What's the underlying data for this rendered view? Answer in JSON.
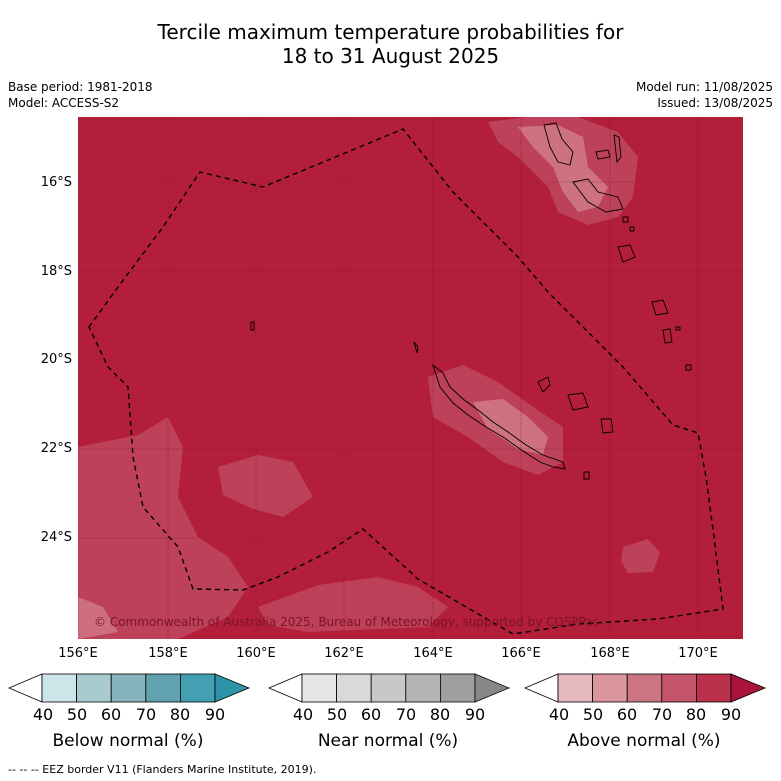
{
  "title": {
    "line1": "Tercile maximum temperature probabilities for",
    "line2": "18 to 31 August 2025"
  },
  "meta": {
    "base_period": "Base period: 1981-2018",
    "model": "Model: ACCESS-S2",
    "model_run": "Model run: 11/08/2025",
    "issued": "Issued: 13/08/2025"
  },
  "map": {
    "lat_labels": [
      "16°S",
      "18°S",
      "20°S",
      "22°S",
      "24°S"
    ],
    "lon_labels": [
      "156°E",
      "158°E",
      "160°E",
      "162°E",
      "164°E",
      "166°E",
      "168°E",
      "170°E"
    ],
    "copyright": "© Commonwealth of Australia 2025, Bureau of Meteorology, supported by COSPPac",
    "dominant_category": "Above normal",
    "colors": {
      "above_90": "#b31e3b",
      "above_80": "#c65168",
      "above_70": "#d17a88",
      "sea_background": "#b31e3b"
    }
  },
  "colorbars": [
    {
      "title": "Below normal (%)",
      "ticks": [
        "40",
        "50",
        "60",
        "70",
        "80",
        "90"
      ],
      "colors": [
        "#ffffff",
        "#cde4e8",
        "#a8cbd1",
        "#86b4be",
        "#62a1b0",
        "#43a0b2",
        "#2d93a8"
      ]
    },
    {
      "title": "Near normal (%)",
      "ticks": [
        "40",
        "50",
        "60",
        "70",
        "80",
        "90"
      ],
      "colors": [
        "#ffffff",
        "#e6e6e6",
        "#d9d9d9",
        "#c8c8c8",
        "#b5b5b5",
        "#9f9f9f",
        "#888888"
      ]
    },
    {
      "title": "Above normal (%)",
      "ticks": [
        "40",
        "50",
        "60",
        "70",
        "80",
        "90"
      ],
      "colors": [
        "#ffffff",
        "#e4b9c0",
        "#da959e",
        "#cd7580",
        "#c45568",
        "#b8304a",
        "#a8143a"
      ]
    }
  ],
  "footer": "--  --  -- EEZ border V11 (Flanders Marine Institute, 2019)."
}
